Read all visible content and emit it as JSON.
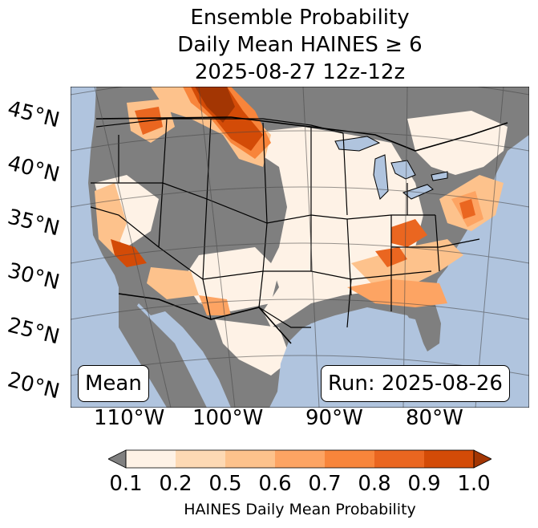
{
  "title": {
    "line1": "Ensemble Probability",
    "line2": "Daily Mean HAINES ≥ 6",
    "line3": "2025-08-27 12z-12z"
  },
  "latitude_labels": [
    "45°N",
    "40°N",
    "35°N",
    "30°N",
    "25°N",
    "20°N"
  ],
  "longitude_labels": [
    "110°W",
    "100°W",
    "90°W",
    "80°W"
  ],
  "left_box": "Mean",
  "right_box": "Run: 2025-08-26",
  "colorbar": {
    "ticks": [
      "0.1",
      "0.2",
      "0.5",
      "0.6",
      "0.7",
      "0.8",
      "0.9",
      "1.0"
    ],
    "label": "HAINES Daily Mean Probability",
    "colors": [
      "#fef2e6",
      "#fdd9b4",
      "#fdc28c",
      "#fda463",
      "#f8853b",
      "#ea6620",
      "#d34b07"
    ],
    "under_color": "#808080",
    "over_color": "#a33603"
  },
  "colors": {
    "ocean": "#b0c4de",
    "no_data_gray": "#7f7f7f",
    "lakes": "#b0c4de"
  }
}
